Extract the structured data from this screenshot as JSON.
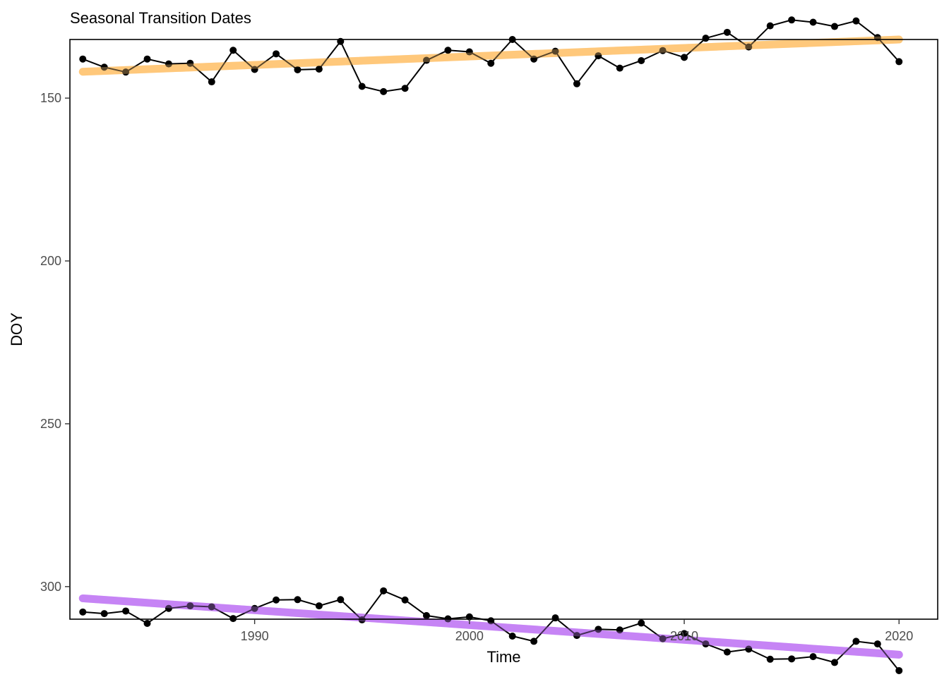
{
  "chart_data": {
    "type": "line",
    "title": "Seasonal Transition Dates",
    "xlabel": "Time",
    "ylabel": "DOY",
    "xlim": [
      1981.4,
      2021.8
    ],
    "ylim": [
      132,
      310
    ],
    "y_reversed": true,
    "x_ticks": [
      1990,
      2000,
      2010,
      2020
    ],
    "y_ticks": [
      150,
      200,
      250,
      300
    ],
    "grid": false,
    "legend": "none",
    "series": [
      {
        "role": "spring-observed",
        "color": "#000000",
        "x": [
          1982,
          1983,
          1984,
          1985,
          1986,
          1987,
          1988,
          1989,
          1990,
          1991,
          1992,
          1993,
          1994,
          1995,
          1996,
          1997,
          1998,
          1999,
          2000,
          2001,
          2002,
          2003,
          2004,
          2005,
          2006,
          2007,
          2008,
          2009,
          2010,
          2011,
          2012,
          2013,
          2014,
          2015,
          2016,
          2017,
          2018,
          2019,
          2020
        ],
        "y": [
          138,
          140.5,
          142,
          138,
          139.5,
          139.3,
          145,
          135.3,
          141.2,
          136.4,
          141.3,
          141.1,
          132.6,
          146.4,
          148,
          147,
          138.4,
          135.3,
          135.8,
          139.3,
          132,
          138,
          135.6,
          145.6,
          137,
          140.8,
          138.5,
          135.4,
          137.5,
          131.6,
          129.8,
          134.3,
          127.8,
          126,
          126.7,
          128,
          126.3,
          131.4,
          138.8
        ]
      },
      {
        "role": "spring-trend",
        "color": "#ffc87c",
        "x": [
          1982,
          2020
        ],
        "y": [
          141.9,
          132
        ]
      },
      {
        "role": "autumn-observed",
        "color": "#000000",
        "x": [
          1982,
          1983,
          1984,
          1985,
          1986,
          1987,
          1988,
          1989,
          1990,
          1991,
          1992,
          1993,
          1994,
          1995,
          1996,
          1997,
          1998,
          1999,
          2000,
          2001,
          2002,
          2003,
          2004,
          2005,
          2006,
          2007,
          2008,
          2009,
          2010,
          2011,
          2012,
          2013,
          2014,
          2015,
          2016,
          2017,
          2018,
          2019,
          2020
        ],
        "y": [
          307.8,
          308.3,
          307.5,
          311.3,
          306.7,
          305.9,
          306.2,
          309.8,
          306.7,
          304.1,
          304,
          305.9,
          304,
          310.2,
          301.3,
          304.1,
          308.9,
          309.9,
          309.3,
          310.5,
          315.2,
          316.8,
          309.6,
          315,
          313.1,
          313.3,
          311.2,
          316,
          314.4,
          317.6,
          320.1,
          319.2,
          322.3,
          322.2,
          321.5,
          323.3,
          316.8,
          317.6,
          325.8
        ]
      },
      {
        "role": "autumn-trend",
        "color": "#c684f5",
        "x": [
          1982,
          2020
        ],
        "y": [
          303.6,
          320.9
        ]
      }
    ]
  }
}
